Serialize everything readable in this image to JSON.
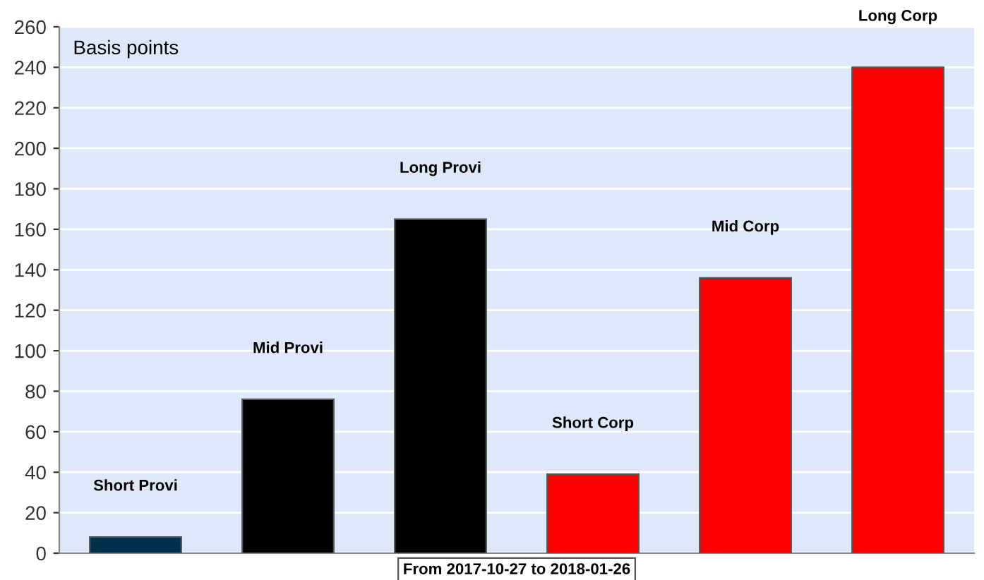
{
  "chart_data": {
    "type": "bar",
    "ylabel": "Basis points",
    "categories": [
      "Short Provi",
      "Mid Provi",
      "Long Provi",
      "Short Corp",
      "Mid Corp",
      "Long Corp"
    ],
    "values": [
      8,
      76,
      165,
      39,
      136,
      240
    ],
    "colors": [
      "#00304e",
      "#000000",
      "#000000",
      "#ff0000",
      "#ff0000",
      "#ff0000"
    ],
    "ylim": [
      0,
      260
    ],
    "yticks": [
      0,
      20,
      40,
      60,
      80,
      100,
      120,
      140,
      160,
      180,
      200,
      220,
      240,
      260
    ],
    "grid": "y",
    "legend": false,
    "annotations": [
      "From 2017-10-27 to 2018-01-26"
    ]
  }
}
